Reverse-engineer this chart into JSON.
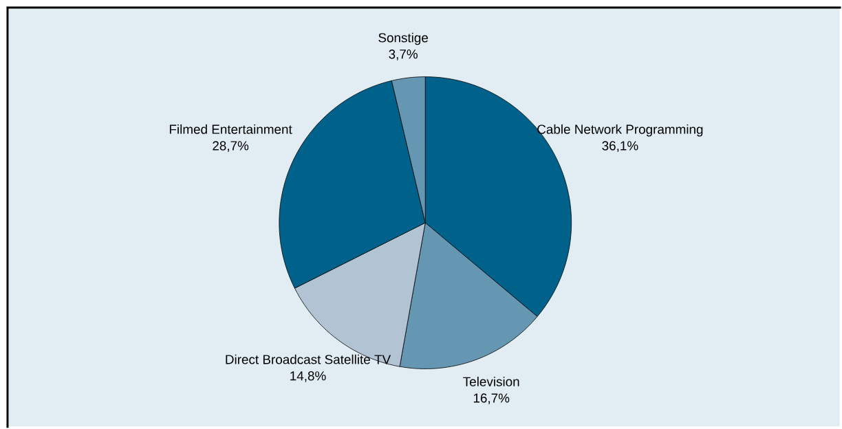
{
  "chart_data": {
    "type": "pie",
    "categories": [
      "Cable Network Programming",
      "Television",
      "Direct Broadcast Satellite TV",
      "Filmed Entertainment",
      "Sonstige"
    ],
    "values": [
      36.1,
      16.7,
      14.8,
      28.7,
      3.7
    ],
    "colors": [
      "#00628b",
      "#6596b2",
      "#b2c4d3",
      "#00628b",
      "#6596b2"
    ],
    "value_labels": [
      "36,1%",
      "16,7%",
      "14,8%",
      "28,7%",
      "3,7%"
    ]
  }
}
